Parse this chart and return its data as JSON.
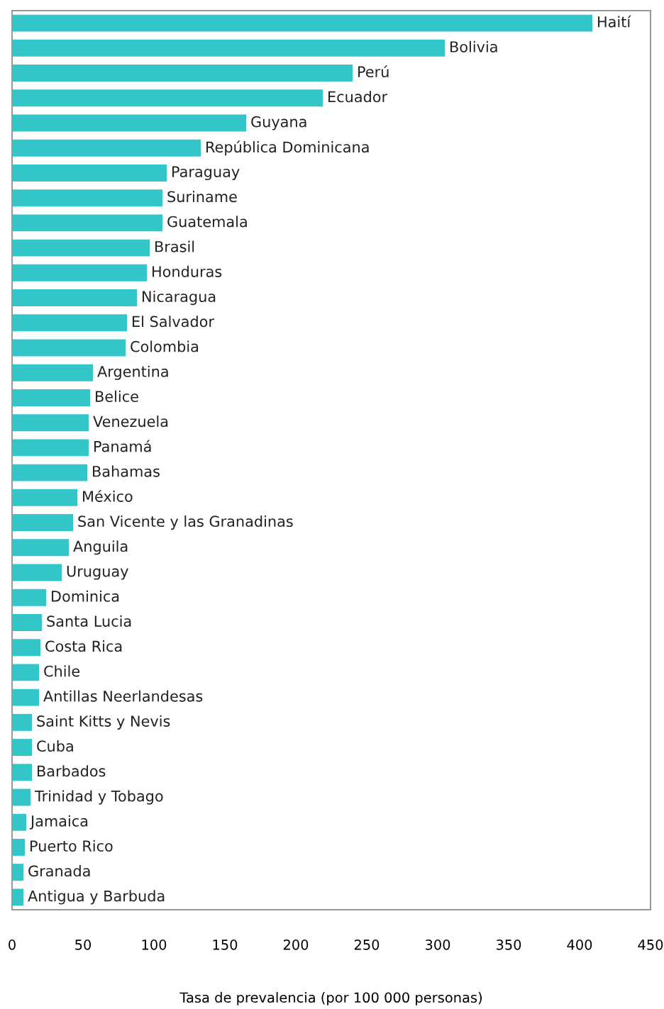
{
  "chart_data": {
    "type": "bar",
    "orientation": "horizontal",
    "xlabel": "Tasa de prevalencia (por 100 000 personas)",
    "categories": [
      "Haití",
      "Bolivia",
      "Perú",
      "Ecuador",
      "Guyana",
      "República Dominicana",
      "Paraguay",
      "Suriname",
      "Guatemala",
      "Brasil",
      "Honduras",
      "Nicaragua",
      "El Salvador",
      "Colombia",
      "Argentina",
      "Belice",
      "Venezuela",
      "Panamá",
      "Bahamas",
      "México",
      "San Vicente y las Granadinas",
      "Anguila",
      "Uruguay",
      "Dominica",
      "Santa Lucia",
      "Costa Rica",
      "Chile",
      "Antillas Neerlandesas",
      "Saint Kitts y Nevis",
      "Cuba",
      "Barbados",
      "Trinidad y Tobago",
      "Jamaica",
      "Puerto Rico",
      "Granada",
      "Antigua y Barbuda"
    ],
    "values": [
      409,
      305,
      240,
      219,
      165,
      133,
      109,
      106,
      106,
      97,
      95,
      88,
      81,
      80,
      57,
      55,
      54,
      54,
      53,
      46,
      43,
      40,
      35,
      24,
      21,
      20,
      19,
      19,
      14,
      14,
      14,
      13,
      10,
      9,
      8,
      8
    ],
    "color": "#33c6c9",
    "xlim": [
      0,
      450
    ],
    "xticks": [
      0,
      50,
      100,
      150,
      200,
      250,
      300,
      350,
      400,
      450
    ],
    "grid": false,
    "legend": false
  }
}
